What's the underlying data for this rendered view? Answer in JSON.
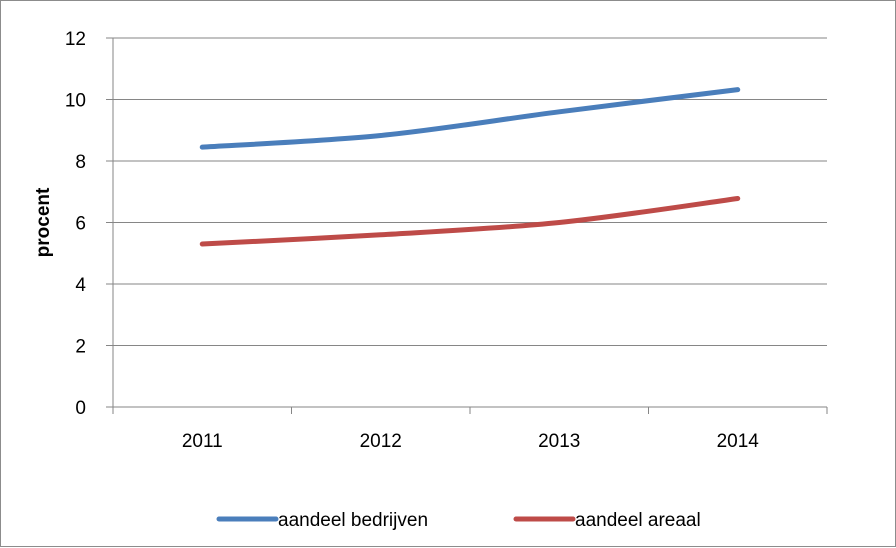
{
  "chart_data": {
    "type": "line",
    "categories": [
      "2011",
      "2012",
      "2013",
      "2014"
    ],
    "series": [
      {
        "name": "aandeel bedrijven",
        "values": [
          8.45,
          8.83,
          9.6,
          10.32
        ],
        "color": "#4a7ebb"
      },
      {
        "name": "aandeel areaal",
        "values": [
          5.3,
          5.6,
          6.0,
          6.78
        ],
        "color": "#be4b48"
      }
    ],
    "ylabel": "procent",
    "xlabel": "",
    "ylim": [
      0,
      12
    ],
    "yticks": [
      0,
      2,
      4,
      6,
      8,
      10,
      12
    ],
    "grid": true,
    "legend": "bottom",
    "colors": {
      "grid": "#868686",
      "axis": "#868686"
    }
  }
}
